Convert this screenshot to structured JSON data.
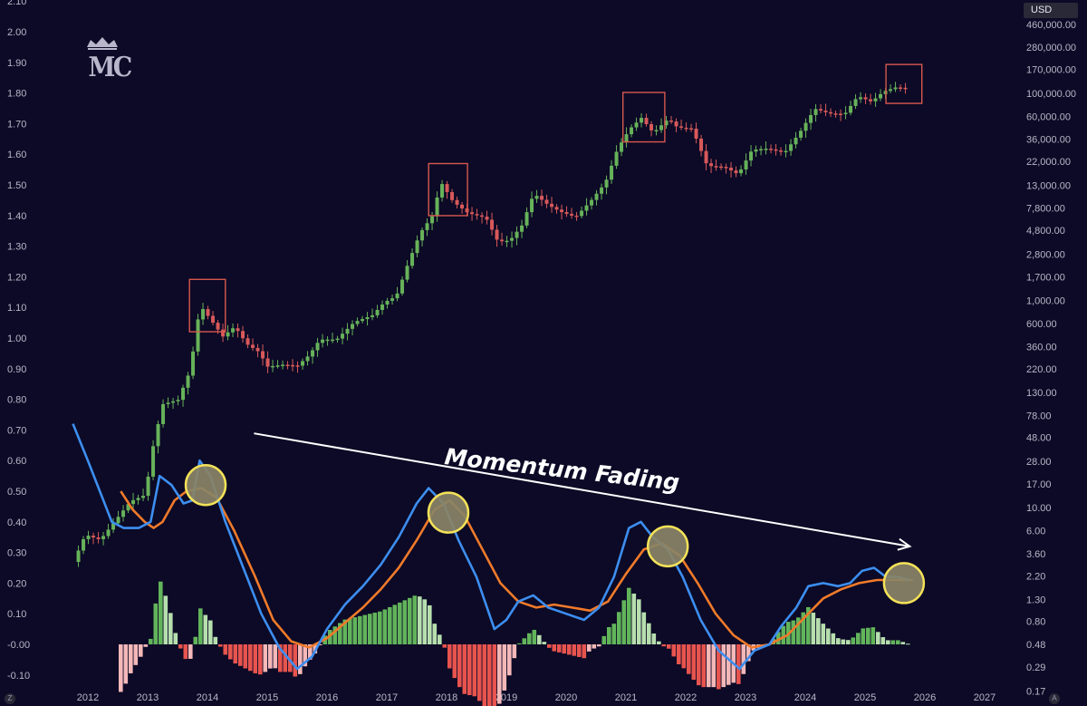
{
  "currency_label": "USD",
  "logo_text": "MC",
  "corner_left_label": "Z",
  "corner_right_label": "A",
  "colors": {
    "background": "#0c0a26",
    "candle_up": "#67b25a",
    "candle_down": "#d8595a",
    "macd_line": "#3d8ef0",
    "signal_line": "#f07a2a",
    "hist_pos_strong": "#62b45b",
    "hist_pos_weak": "#b7dfae",
    "hist_neg_strong": "#e7544e",
    "hist_neg_weak": "#f4b8b8",
    "highlight_box": "#d8584e",
    "circle_fill": "#8a8466",
    "circle_stroke": "#f3e158",
    "annotation": "#ffffff"
  },
  "chart_data": {
    "type": "candlestick",
    "x_ticks": [
      "2012",
      "2013",
      "2014",
      "2015",
      "2016",
      "2017",
      "2018",
      "2019",
      "2020",
      "2021",
      "2022",
      "2023",
      "2024",
      "2025",
      "2026",
      "2027"
    ],
    "left_axis_ticks": [
      "2.10",
      "2.00",
      "1.90",
      "1.80",
      "1.70",
      "1.60",
      "1.50",
      "1.40",
      "1.30",
      "1.20",
      "1.10",
      "1.00",
      "0.90",
      "0.80",
      "0.70",
      "0.60",
      "0.50",
      "0.40",
      "0.30",
      "0.20",
      "0.10",
      "-0.00",
      "-0.10"
    ],
    "right_axis_ticks": [
      "460,000.00",
      "280,000.00",
      "170,000.00",
      "100,000.00",
      "60,000.00",
      "36,000.00",
      "22,000.00",
      "13,000.00",
      "7,800.00",
      "4,800.00",
      "2,800.00",
      "1,700.00",
      "1,000.00",
      "600.00",
      "360.00",
      "220.00",
      "130.00",
      "78.00",
      "48.00",
      "28.00",
      "17.00",
      "10.00",
      "6.00",
      "3.60",
      "2.20",
      "1.30",
      "0.80",
      "0.48",
      "0.29",
      "0.17"
    ],
    "right_axis_scale": "log",
    "annotation": "Momentum Fading",
    "price_path": [
      {
        "date": "2011.80",
        "price": 3.0
      },
      {
        "date": "2012.00",
        "price": 5.5
      },
      {
        "date": "2012.25",
        "price": 4.9
      },
      {
        "date": "2012.50",
        "price": 7.5
      },
      {
        "date": "2012.75",
        "price": 11.5
      },
      {
        "date": "2013.00",
        "price": 13.3
      },
      {
        "date": "2013.15",
        "price": 45
      },
      {
        "date": "2013.30",
        "price": 100
      },
      {
        "date": "2013.55",
        "price": 110
      },
      {
        "date": "2013.75",
        "price": 210
      },
      {
        "date": "2013.92",
        "price": 900
      },
      {
        "date": "2014.10",
        "price": 650
      },
      {
        "date": "2014.30",
        "price": 450
      },
      {
        "date": "2014.50",
        "price": 560
      },
      {
        "date": "2014.70",
        "price": 380
      },
      {
        "date": "2014.90",
        "price": 320
      },
      {
        "date": "2015.05",
        "price": 230
      },
      {
        "date": "2015.30",
        "price": 240
      },
      {
        "date": "2015.55",
        "price": 235
      },
      {
        "date": "2015.75",
        "price": 300
      },
      {
        "date": "2015.92",
        "price": 420
      },
      {
        "date": "2016.20",
        "price": 420
      },
      {
        "date": "2016.50",
        "price": 620
      },
      {
        "date": "2016.80",
        "price": 720
      },
      {
        "date": "2017.00",
        "price": 960
      },
      {
        "date": "2017.20",
        "price": 1100
      },
      {
        "date": "2017.40",
        "price": 2300
      },
      {
        "date": "2017.60",
        "price": 4500
      },
      {
        "date": "2017.80",
        "price": 6500
      },
      {
        "date": "2017.95",
        "price": 13800
      },
      {
        "date": "2018.15",
        "price": 9000
      },
      {
        "date": "2018.40",
        "price": 7000
      },
      {
        "date": "2018.70",
        "price": 6300
      },
      {
        "date": "2018.90",
        "price": 3700
      },
      {
        "date": "2019.10",
        "price": 3800
      },
      {
        "date": "2019.30",
        "price": 5300
      },
      {
        "date": "2019.50",
        "price": 10800
      },
      {
        "date": "2019.75",
        "price": 8300
      },
      {
        "date": "2019.95",
        "price": 7200
      },
      {
        "date": "2020.20",
        "price": 6400
      },
      {
        "date": "2020.45",
        "price": 9100
      },
      {
        "date": "2020.70",
        "price": 13800
      },
      {
        "date": "2020.90",
        "price": 29000
      },
      {
        "date": "2021.10",
        "price": 45000
      },
      {
        "date": "2021.30",
        "price": 58000
      },
      {
        "date": "2021.50",
        "price": 41500
      },
      {
        "date": "2021.75",
        "price": 57000
      },
      {
        "date": "2021.90",
        "price": 47000
      },
      {
        "date": "2022.15",
        "price": 45500
      },
      {
        "date": "2022.40",
        "price": 20000
      },
      {
        "date": "2022.70",
        "price": 19400
      },
      {
        "date": "2022.92",
        "price": 16500
      },
      {
        "date": "2023.15",
        "price": 28500
      },
      {
        "date": "2023.40",
        "price": 29300
      },
      {
        "date": "2023.70",
        "price": 27000
      },
      {
        "date": "2023.95",
        "price": 42000
      },
      {
        "date": "2024.20",
        "price": 71000
      },
      {
        "date": "2024.45",
        "price": 64000
      },
      {
        "date": "2024.70",
        "price": 63000
      },
      {
        "date": "2024.92",
        "price": 94000
      },
      {
        "date": "2025.15",
        "price": 83000
      },
      {
        "date": "2025.35",
        "price": 104000
      },
      {
        "date": "2025.55",
        "price": 114000
      },
      {
        "date": "2025.75",
        "price": 112000
      }
    ],
    "highlight_peaks": [
      {
        "from": "2013.70",
        "to": "2014.30",
        "low": 500,
        "high": 1600
      },
      {
        "from": "2017.70",
        "to": "2018.35",
        "low": 6600,
        "high": 21000
      },
      {
        "from": "2020.95",
        "to": "2021.65",
        "low": 34000,
        "high": 102000
      },
      {
        "from": "2025.35",
        "to": "2025.95",
        "low": 80000,
        "high": 190000
      }
    ],
    "macd_path": [
      {
        "date": "2011.75",
        "value": 0.72
      },
      {
        "date": "2012.00",
        "value": 0.6
      },
      {
        "date": "2012.20",
        "value": 0.5
      },
      {
        "date": "2012.40",
        "value": 0.4
      },
      {
        "date": "2012.60",
        "value": 0.38
      },
      {
        "date": "2012.85",
        "value": 0.38
      },
      {
        "date": "2013.05",
        "value": 0.4
      },
      {
        "date": "2013.20",
        "value": 0.55
      },
      {
        "date": "2013.40",
        "value": 0.52
      },
      {
        "date": "2013.60",
        "value": 0.46
      },
      {
        "date": "2013.75",
        "value": 0.47
      },
      {
        "date": "2013.87",
        "value": 0.6
      },
      {
        "date": "2014.05",
        "value": 0.55
      },
      {
        "date": "2014.30",
        "value": 0.4
      },
      {
        "date": "2014.60",
        "value": 0.25
      },
      {
        "date": "2014.90",
        "value": 0.1
      },
      {
        "date": "2015.20",
        "value": -0.01
      },
      {
        "date": "2015.50",
        "value": -0.08
      },
      {
        "date": "2015.75",
        "value": -0.04
      },
      {
        "date": "2016.00",
        "value": 0.05
      },
      {
        "date": "2016.30",
        "value": 0.13
      },
      {
        "date": "2016.60",
        "value": 0.19
      },
      {
        "date": "2016.90",
        "value": 0.26
      },
      {
        "date": "2017.20",
        "value": 0.35
      },
      {
        "date": "2017.50",
        "value": 0.46
      },
      {
        "date": "2017.70",
        "value": 0.51
      },
      {
        "date": "2017.95",
        "value": 0.46
      },
      {
        "date": "2018.20",
        "value": 0.34
      },
      {
        "date": "2018.50",
        "value": 0.22
      },
      {
        "date": "2018.80",
        "value": 0.05
      },
      {
        "date": "2019.00",
        "value": 0.08
      },
      {
        "date": "2019.20",
        "value": 0.14
      },
      {
        "date": "2019.45",
        "value": 0.16
      },
      {
        "date": "2019.70",
        "value": 0.12
      },
      {
        "date": "2020.00",
        "value": 0.1
      },
      {
        "date": "2020.30",
        "value": 0.08
      },
      {
        "date": "2020.55",
        "value": 0.12
      },
      {
        "date": "2020.80",
        "value": 0.22
      },
      {
        "date": "2021.05",
        "value": 0.38
      },
      {
        "date": "2021.25",
        "value": 0.4
      },
      {
        "date": "2021.45",
        "value": 0.35
      },
      {
        "date": "2021.70",
        "value": 0.31
      },
      {
        "date": "2021.95",
        "value": 0.22
      },
      {
        "date": "2022.25",
        "value": 0.08
      },
      {
        "date": "2022.55",
        "value": -0.02
      },
      {
        "date": "2022.90",
        "value": -0.08
      },
      {
        "date": "2023.15",
        "value": -0.02
      },
      {
        "date": "2023.40",
        "value": 0.0
      },
      {
        "date": "2023.60",
        "value": 0.06
      },
      {
        "date": "2023.85",
        "value": 0.12
      },
      {
        "date": "2024.05",
        "value": 0.19
      },
      {
        "date": "2024.30",
        "value": 0.2
      },
      {
        "date": "2024.55",
        "value": 0.19
      },
      {
        "date": "2024.75",
        "value": 0.2
      },
      {
        "date": "2024.95",
        "value": 0.24
      },
      {
        "date": "2025.15",
        "value": 0.25
      },
      {
        "date": "2025.35",
        "value": 0.22
      },
      {
        "date": "2025.55",
        "value": 0.22
      },
      {
        "date": "2025.75",
        "value": 0.21
      }
    ],
    "signal_path": [
      {
        "date": "2012.55",
        "value": 0.5
      },
      {
        "date": "2012.75",
        "value": 0.44
      },
      {
        "date": "2012.95",
        "value": 0.4
      },
      {
        "date": "2013.10",
        "value": 0.38
      },
      {
        "date": "2013.25",
        "value": 0.4
      },
      {
        "date": "2013.45",
        "value": 0.47
      },
      {
        "date": "2013.65",
        "value": 0.5
      },
      {
        "date": "2013.90",
        "value": 0.51
      },
      {
        "date": "2014.15",
        "value": 0.48
      },
      {
        "date": "2014.45",
        "value": 0.37
      },
      {
        "date": "2014.80",
        "value": 0.22
      },
      {
        "date": "2015.10",
        "value": 0.08
      },
      {
        "date": "2015.40",
        "value": 0.01
      },
      {
        "date": "2015.70",
        "value": -0.01
      },
      {
        "date": "2016.00",
        "value": 0.02
      },
      {
        "date": "2016.30",
        "value": 0.07
      },
      {
        "date": "2016.60",
        "value": 0.12
      },
      {
        "date": "2016.90",
        "value": 0.18
      },
      {
        "date": "2017.20",
        "value": 0.25
      },
      {
        "date": "2017.50",
        "value": 0.34
      },
      {
        "date": "2017.80",
        "value": 0.44
      },
      {
        "date": "2018.05",
        "value": 0.47
      },
      {
        "date": "2018.30",
        "value": 0.42
      },
      {
        "date": "2018.60",
        "value": 0.31
      },
      {
        "date": "2018.90",
        "value": 0.2
      },
      {
        "date": "2019.20",
        "value": 0.14
      },
      {
        "date": "2019.50",
        "value": 0.12
      },
      {
        "date": "2019.80",
        "value": 0.13
      },
      {
        "date": "2020.10",
        "value": 0.12
      },
      {
        "date": "2020.40",
        "value": 0.11
      },
      {
        "date": "2020.70",
        "value": 0.14
      },
      {
        "date": "2021.00",
        "value": 0.23
      },
      {
        "date": "2021.30",
        "value": 0.31
      },
      {
        "date": "2021.60",
        "value": 0.33
      },
      {
        "date": "2021.90",
        "value": 0.29
      },
      {
        "date": "2022.20",
        "value": 0.2
      },
      {
        "date": "2022.50",
        "value": 0.1
      },
      {
        "date": "2022.80",
        "value": 0.03
      },
      {
        "date": "2023.10",
        "value": -0.01
      },
      {
        "date": "2023.40",
        "value": 0.0
      },
      {
        "date": "2023.70",
        "value": 0.03
      },
      {
        "date": "2024.00",
        "value": 0.09
      },
      {
        "date": "2024.30",
        "value": 0.15
      },
      {
        "date": "2024.60",
        "value": 0.18
      },
      {
        "date": "2024.90",
        "value": 0.2
      },
      {
        "date": "2025.20",
        "value": 0.21
      },
      {
        "date": "2025.50",
        "value": 0.21
      },
      {
        "date": "2025.80",
        "value": 0.21
      }
    ],
    "momentum_markers": [
      {
        "date": "2013.97",
        "value": 0.52
      },
      {
        "date": "2018.03",
        "value": 0.43
      },
      {
        "date": "2021.70",
        "value": 0.32
      },
      {
        "date": "2025.65",
        "value": 0.2
      }
    ],
    "trendline": {
      "from": {
        "date": "2013.87",
        "value": 0.6
      },
      "to": {
        "date": "2026.05",
        "value": 0.32
      }
    }
  }
}
